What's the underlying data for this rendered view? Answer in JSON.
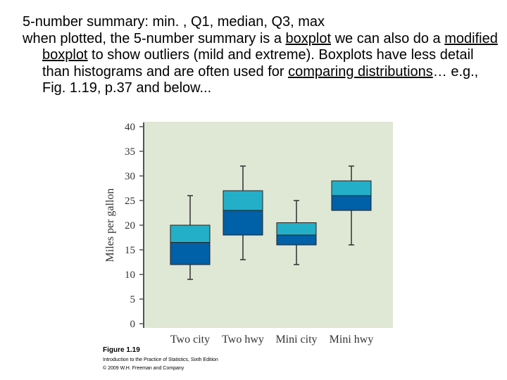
{
  "text": {
    "line1": "5-number summary: min. , Q1, median, Q3, max",
    "p2_before_boxplot": "when plotted, the 5-number summary is a ",
    "boxplot_link": "boxplot",
    "p2_after_boxplot": " we can also do a ",
    "modified_link": "modified boxplot",
    "p2_after_modified": " to show outliers (mild and extreme). Boxplots have less detail than histograms and are often used for ",
    "comparing_link": "comparing distributions",
    "p2_end": "… e.g.,  Fig. 1.19, p.37 and below..."
  },
  "figure": {
    "label": "Figure 1.19",
    "book": "Introduction to the Practice of Statistics, Sixth Edition",
    "copyright": "© 2009 W.H. Freeman and Company"
  },
  "chart_data": {
    "type": "boxplot",
    "ylabel": "Miles per gallon",
    "xlabel": "",
    "ylim": [
      0,
      40
    ],
    "yticks": [
      0,
      5,
      10,
      15,
      20,
      25,
      30,
      35,
      40
    ],
    "categories": [
      "Two city",
      "Two hwy",
      "Mini city",
      "Mini hwy"
    ],
    "boxes": [
      {
        "min": 9,
        "q1": 12,
        "median": 16.5,
        "q3": 20,
        "max": 26
      },
      {
        "min": 13,
        "q1": 18,
        "median": 23,
        "q3": 27,
        "max": 32
      },
      {
        "min": 12,
        "q1": 16,
        "median": 18,
        "q3": 20.5,
        "max": 25
      },
      {
        "min": 16,
        "q1": 23,
        "median": 26,
        "q3": 29,
        "max": 32
      }
    ],
    "grid": false,
    "colors": {
      "plot_background": "#dfe7d5",
      "upper_box": "#24afc8",
      "lower_box": "#0060a8",
      "whisker": "#303030"
    }
  }
}
